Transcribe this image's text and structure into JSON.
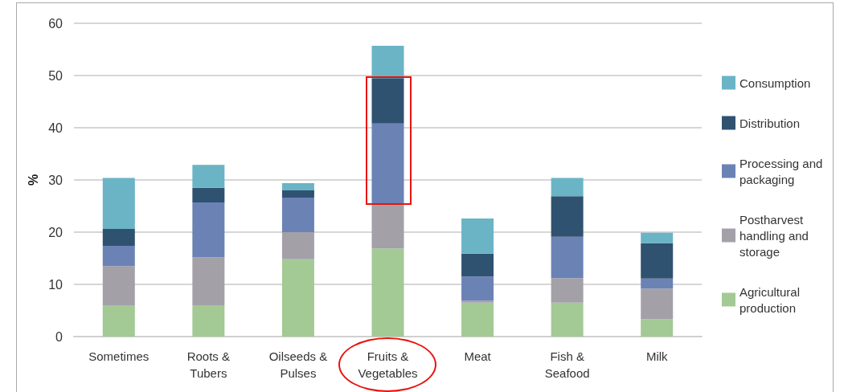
{
  "chart_data": {
    "type": "bar",
    "stacked": true,
    "ylabel": "%",
    "categories": [
      "Sometimes",
      "Roots &\nTubers",
      "Oilseeds &\nPulses",
      "Fruits &\nVegetables",
      "Meat",
      "Fish &\nSeafood",
      "Milk"
    ],
    "series": [
      {
        "name": "Agricultural production",
        "color": "#a3c994",
        "values": [
          6,
          6,
          14.8,
          16.9,
          6.5,
          6.5,
          3.3
        ]
      },
      {
        "name": "Postharvest handling and storage",
        "color": "#a3a0a8",
        "values": [
          7.5,
          9.2,
          5.2,
          8.5,
          0.4,
          4.7,
          5.9
        ]
      },
      {
        "name": "Processing and packaging",
        "color": "#6b82b5",
        "values": [
          3.9,
          10.5,
          6.6,
          15.4,
          4.6,
          7.9,
          1.9
        ]
      },
      {
        "name": "Distribution",
        "color": "#2f5270",
        "values": [
          3.2,
          2.8,
          1.4,
          8.7,
          4.4,
          7.8,
          6.8
        ]
      },
      {
        "name": "Consumption",
        "color": "#6ab4c6",
        "values": [
          9.8,
          4.4,
          1.4,
          6.2,
          6.7,
          3.5,
          2.0
        ]
      }
    ],
    "ylim": [
      0,
      60
    ],
    "yticks": [
      0,
      10,
      20,
      30,
      40,
      50,
      60
    ],
    "grid": "y",
    "legend": "right"
  }
}
